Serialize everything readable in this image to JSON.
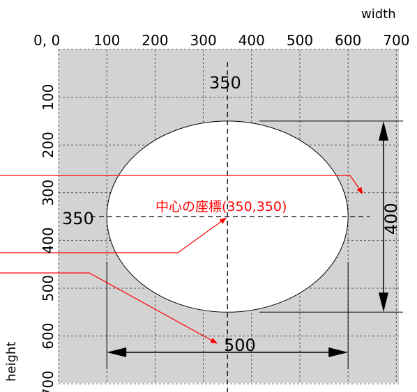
{
  "axes": {
    "x_name": "width",
    "y_name": "height",
    "origin_label": "0, 0",
    "x_ticks": [
      100,
      200,
      300,
      400,
      500,
      600,
      700
    ],
    "y_ticks": [
      100,
      200,
      300,
      400,
      500,
      600,
      700
    ]
  },
  "ellipse": {
    "center": [
      350,
      350
    ],
    "width": 500,
    "height": 400
  },
  "labels": {
    "center_x_value": "350",
    "center_y_value": "350",
    "width_value": "500",
    "height_value": "400",
    "center_label": "中心の座標(350,350)"
  },
  "colors": {
    "canvas": "#d3d3d3",
    "ellipse_fill": "#ffffff",
    "grid": "#555555",
    "annotation": "#ff0000",
    "ink": "#000000"
  }
}
